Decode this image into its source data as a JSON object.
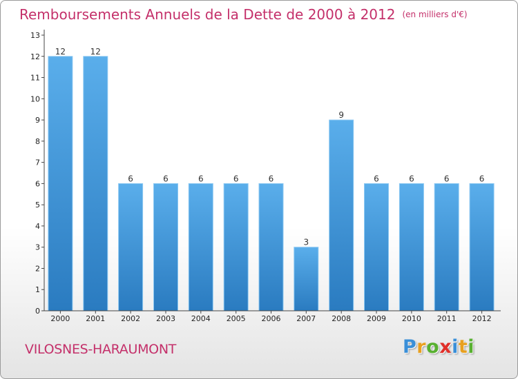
{
  "title": "Remboursements Annuels de la Dette de 2000 à 2012",
  "unit_note": "(en milliers d'€)",
  "commune": "VILOSNES-HARAUMONT",
  "logo": {
    "letters": [
      "P",
      "r",
      "o",
      "x",
      "i",
      "t",
      "i"
    ],
    "colors": [
      "#3a8fd8",
      "#e8a020",
      "#58b030",
      "#e0302a",
      "#3a8fd8",
      "#e8a020",
      "#58b030"
    ]
  },
  "chart_data": {
    "type": "bar",
    "categories": [
      "2000",
      "2001",
      "2002",
      "2003",
      "2004",
      "2005",
      "2006",
      "2007",
      "2008",
      "2009",
      "2010",
      "2011",
      "2012"
    ],
    "values": [
      12,
      12,
      6,
      6,
      6,
      6,
      6,
      3,
      9,
      6,
      6,
      6,
      6
    ],
    "data_labels": [
      "12",
      "12",
      "6",
      "6",
      "6",
      "6",
      "6",
      "3",
      "9",
      "6",
      "6",
      "6",
      "6"
    ],
    "ylim": [
      0,
      13
    ],
    "yticks": [
      "0",
      "1",
      "2",
      "3",
      "4",
      "5",
      "6",
      "7",
      "8",
      "9",
      "10",
      "11",
      "12",
      "13"
    ],
    "grid": false,
    "legend": "none",
    "bar_color": "#3d8fd3",
    "title": "Remboursements Annuels de la Dette de 2000 à 2012",
    "xlabel": "",
    "ylabel": ""
  }
}
